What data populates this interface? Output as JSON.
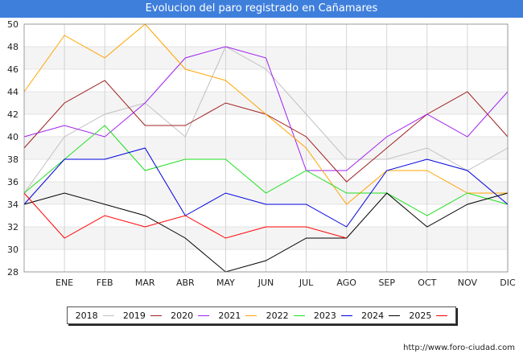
{
  "title": "Evolucion del paro registrado en Cañamares",
  "source": "http://www.foro-ciudad.com",
  "chart_data": {
    "type": "line",
    "title": "Evolucion del paro registrado en Cañamares",
    "xlabel": "",
    "ylabel": "",
    "categories": [
      "",
      "ENE",
      "FEB",
      "MAR",
      "ABR",
      "MAY",
      "JUN",
      "JUL",
      "AGO",
      "SEP",
      "OCT",
      "NOV",
      "DIC"
    ],
    "ylim": [
      28,
      50
    ],
    "yticks": [
      28,
      30,
      32,
      34,
      36,
      38,
      40,
      42,
      44,
      46,
      48,
      50
    ],
    "grid": true,
    "legend_position": "bottom",
    "series": [
      {
        "name": "2018",
        "color": "#c0c0c0",
        "values": [
          35,
          40,
          42,
          43,
          40,
          48,
          46,
          42,
          38,
          38,
          39,
          37,
          39
        ]
      },
      {
        "name": "2019",
        "color": "#a02020",
        "values": [
          39,
          43,
          45,
          41,
          41,
          43,
          42,
          40,
          36,
          39,
          42,
          44,
          40
        ]
      },
      {
        "name": "2020",
        "color": "#a020f0",
        "values": [
          40,
          41,
          40,
          43,
          47,
          48,
          47,
          37,
          37,
          40,
          42,
          40,
          44
        ]
      },
      {
        "name": "2021",
        "color": "#ffa500",
        "values": [
          44,
          49,
          47,
          50,
          46,
          45,
          42,
          39,
          34,
          37,
          37,
          35,
          35
        ]
      },
      {
        "name": "2022",
        "color": "#20e020",
        "values": [
          35,
          38,
          41,
          37,
          38,
          38,
          35,
          37,
          35,
          35,
          33,
          35,
          34
        ]
      },
      {
        "name": "2023",
        "color": "#0000e0",
        "values": [
          34,
          38,
          38,
          39,
          33,
          35,
          34,
          34,
          32,
          37,
          38,
          37,
          34
        ]
      },
      {
        "name": "2024",
        "color": "#000000",
        "values": [
          34,
          35,
          34,
          33,
          31,
          28,
          29,
          31,
          31,
          35,
          32,
          34,
          35
        ]
      },
      {
        "name": "2025",
        "color": "#ff0000",
        "values": [
          35,
          31,
          33,
          32,
          33,
          31,
          32,
          32,
          31,
          null,
          null,
          null,
          null
        ]
      }
    ]
  }
}
